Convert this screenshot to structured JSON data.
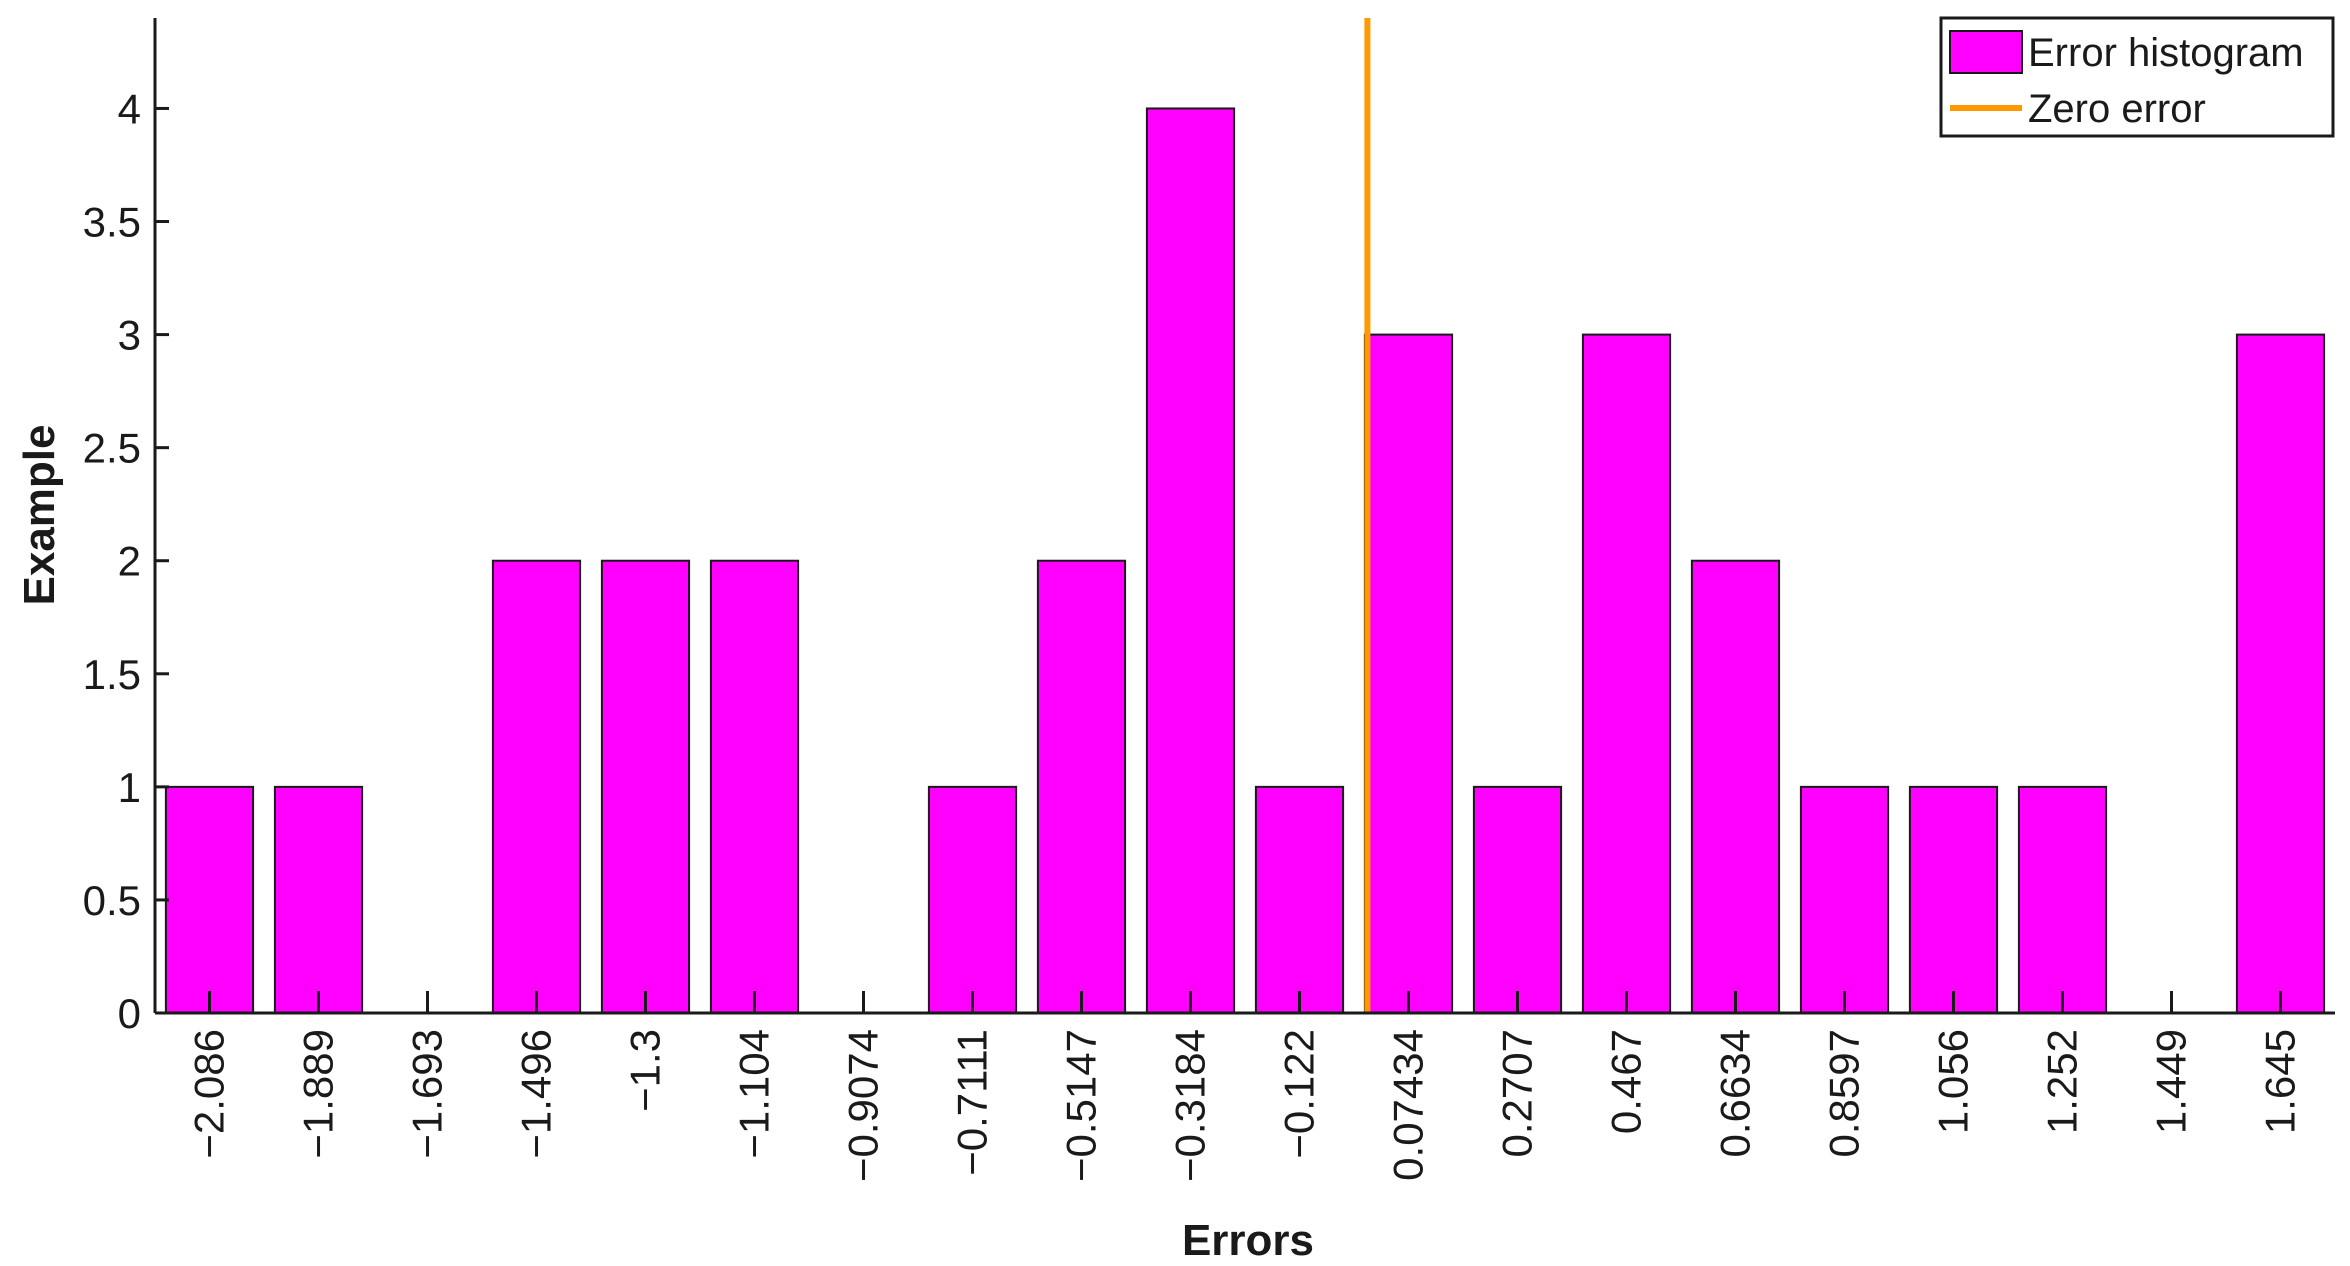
{
  "chart_data": {
    "type": "bar",
    "title": "",
    "xlabel": "Errors",
    "ylabel": "Example",
    "categories": [
      "−2.086",
      "−1.889",
      "−1.693",
      "−1.496",
      "−1.3",
      "−1.104",
      "−0.9074",
      "−0.7111",
      "−0.5147",
      "−0.3184",
      "−0.122",
      "0.07434",
      "0.2707",
      "0.467",
      "0.6634",
      "0.8597",
      "1.056",
      "1.252",
      "1.449",
      "1.645"
    ],
    "x": [
      -2.086,
      -1.889,
      -1.693,
      -1.496,
      -1.3,
      -1.104,
      -0.9074,
      -0.7111,
      -0.5147,
      -0.3184,
      -0.122,
      0.07434,
      0.2707,
      0.467,
      0.6634,
      0.8597,
      1.056,
      1.252,
      1.449,
      1.645
    ],
    "values": [
      1,
      1,
      0,
      2,
      2,
      2,
      0,
      1,
      2,
      4,
      1,
      3,
      1,
      3,
      2,
      1,
      1,
      1,
      0,
      3
    ],
    "ylim": [
      0,
      4.4
    ],
    "yticks": [
      0,
      0.5,
      1,
      1.5,
      2,
      2.5,
      3,
      3.5,
      4
    ],
    "zero_error_x": 0,
    "series": [
      {
        "name": "Error histogram",
        "color": "#ff00ff"
      },
      {
        "name": "Zero error",
        "color": "#ff9900"
      }
    ],
    "legend_position": "top-right",
    "grid": false
  }
}
